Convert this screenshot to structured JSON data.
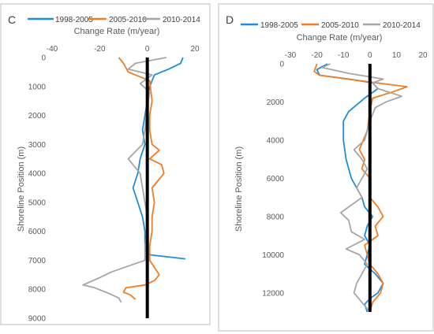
{
  "colors": {
    "s1998": "#1f8dd6",
    "s2005": "#f07d24",
    "s2010": "#a6a6a6",
    "zero_line": "#000000"
  },
  "chart_data": [
    {
      "type": "line",
      "panel": "C",
      "xlabel": "Change Rate (m/year)",
      "ylabel": "Shoreline Position (m)",
      "xlim": [
        -40,
        20
      ],
      "ylim": [
        0,
        9000
      ],
      "y_inverted": true,
      "x_ticks": [
        -40,
        -20,
        0,
        20
      ],
      "y_ticks": [
        0,
        1000,
        2000,
        3000,
        4000,
        5000,
        6000,
        7000,
        8000,
        9000
      ],
      "legend_position": "top",
      "series": [
        {
          "name": "1998-2005",
          "color": "#1f8dd6",
          "points": [
            [
              15,
              0
            ],
            [
              14,
              200
            ],
            [
              9,
              400
            ],
            [
              3,
              600
            ],
            [
              1,
              1000
            ],
            [
              0,
              1500
            ],
            [
              -1,
              2000
            ],
            [
              -2,
              2500
            ],
            [
              -1,
              3000
            ],
            [
              -3,
              3500
            ],
            [
              -4,
              4000
            ],
            [
              -6,
              4500
            ],
            [
              -4,
              5000
            ],
            [
              -2,
              5500
            ],
            [
              -1,
              6000
            ],
            [
              -1,
              6500
            ],
            [
              0,
              6800
            ],
            [
              16,
              6950
            ]
          ]
        },
        {
          "name": "2005-2010",
          "color": "#f07d24",
          "points": [
            [
              -12,
              0
            ],
            [
              -10,
              200
            ],
            [
              -8,
              500
            ],
            [
              1,
              800
            ],
            [
              2,
              1500
            ],
            [
              1,
              2000
            ],
            [
              1,
              2500
            ],
            [
              2,
              3000
            ],
            [
              5,
              3200
            ],
            [
              1,
              3500
            ],
            [
              6,
              3700
            ],
            [
              7,
              4000
            ],
            [
              5,
              4200
            ],
            [
              2,
              4500
            ],
            [
              3,
              5000
            ],
            [
              2,
              5500
            ],
            [
              2,
              6000
            ],
            [
              1,
              6500
            ],
            [
              1,
              7000
            ],
            [
              5,
              7500
            ],
            [
              3,
              7700
            ],
            [
              -1,
              7850
            ],
            [
              -9,
              7950
            ],
            [
              -10,
              8100
            ],
            [
              -7,
              8200
            ],
            [
              -5,
              8350
            ]
          ]
        },
        {
          "name": "2010-2014",
          "color": "#a6a6a6",
          "points": [
            [
              8,
              0
            ],
            [
              -5,
              200
            ],
            [
              -8,
              400
            ],
            [
              2,
              600
            ],
            [
              -3,
              900
            ],
            [
              1,
              1200
            ],
            [
              0,
              1700
            ],
            [
              -1,
              2500
            ],
            [
              -2,
              3000
            ],
            [
              -8,
              3500
            ],
            [
              -5,
              3800
            ],
            [
              -3,
              4000
            ],
            [
              -2,
              4500
            ],
            [
              -1,
              5000
            ],
            [
              0,
              5500
            ],
            [
              0,
              6000
            ],
            [
              -1,
              6500
            ],
            [
              -1,
              7000
            ],
            [
              -8,
              7200
            ],
            [
              -15,
              7400
            ],
            [
              -20,
              7600
            ],
            [
              -27,
              7850
            ],
            [
              -22,
              7950
            ],
            [
              -16,
              8150
            ],
            [
              -12,
              8300
            ],
            [
              -11,
              8450
            ]
          ]
        }
      ]
    },
    {
      "type": "line",
      "panel": "D",
      "xlabel": "Change Rate (m/year)",
      "ylabel": "Shoreline Position (m)",
      "xlim": [
        -30,
        20
      ],
      "ylim": [
        0,
        13000
      ],
      "y_inverted": true,
      "x_ticks": [
        -30,
        -20,
        -10,
        0,
        10,
        20
      ],
      "y_ticks": [
        0,
        2000,
        4000,
        6000,
        8000,
        10000,
        12000
      ],
      "legend_position": "top",
      "series": [
        {
          "name": "1998-2005",
          "color": "#1f8dd6",
          "points": [
            [
              -16,
              0
            ],
            [
              -20,
              300
            ],
            [
              -19,
              600
            ],
            [
              -8,
              800
            ],
            [
              1,
              1000
            ],
            [
              3,
              1300
            ],
            [
              -2,
              1800
            ],
            [
              -8,
              2500
            ],
            [
              -10,
              3000
            ],
            [
              -10,
              4000
            ],
            [
              -9,
              5000
            ],
            [
              -7,
              6000
            ],
            [
              -5,
              6500
            ],
            [
              -3,
              7000
            ],
            [
              -2,
              7500
            ],
            [
              1,
              8000
            ],
            [
              -1,
              8500
            ],
            [
              -2,
              9000
            ],
            [
              0,
              9500
            ],
            [
              -1,
              10000
            ],
            [
              -2,
              10500
            ],
            [
              2,
              11000
            ],
            [
              5,
              11500
            ],
            [
              3,
              12000
            ],
            [
              0,
              12300
            ],
            [
              -2,
              12600
            ],
            [
              -1,
              13000
            ]
          ]
        },
        {
          "name": "2005-2010",
          "color": "#f07d24",
          "points": [
            [
              -20,
              0
            ],
            [
              -21,
              400
            ],
            [
              -19,
              600
            ],
            [
              -3,
              900
            ],
            [
              14,
              1200
            ],
            [
              8,
              1500
            ],
            [
              1,
              1800
            ],
            [
              0,
              2500
            ],
            [
              -1,
              3500
            ],
            [
              -4,
              4500
            ],
            [
              -2,
              5000
            ],
            [
              -3,
              5500
            ],
            [
              0,
              6000
            ],
            [
              0,
              7000
            ],
            [
              3,
              7500
            ],
            [
              5,
              8000
            ],
            [
              2,
              8500
            ],
            [
              3,
              9000
            ],
            [
              -2,
              9500
            ],
            [
              -1,
              10000
            ],
            [
              0,
              10500
            ],
            [
              3,
              11000
            ],
            [
              5,
              11500
            ],
            [
              4,
              12000
            ],
            [
              1,
              12500
            ],
            [
              0,
              13000
            ]
          ]
        },
        {
          "name": "2010-2014",
          "color": "#a6a6a6",
          "points": [
            [
              -15,
              0
            ],
            [
              -18,
              200
            ],
            [
              -8,
              500
            ],
            [
              5,
              800
            ],
            [
              1,
              1000
            ],
            [
              3,
              1300
            ],
            [
              12,
              1700
            ],
            [
              6,
              2000
            ],
            [
              2,
              2300
            ],
            [
              0,
              3000
            ],
            [
              -2,
              4000
            ],
            [
              -6,
              4500
            ],
            [
              -3,
              5000
            ],
            [
              -1,
              5500
            ],
            [
              -5,
              6500
            ],
            [
              -3,
              7000
            ],
            [
              -11,
              7800
            ],
            [
              -8,
              8200
            ],
            [
              -7,
              8800
            ],
            [
              -2,
              9200
            ],
            [
              -9,
              9700
            ],
            [
              -4,
              10000
            ],
            [
              -1,
              10500
            ],
            [
              -3,
              11000
            ],
            [
              -5,
              11500
            ],
            [
              -6,
              12000
            ],
            [
              -3,
              12500
            ],
            [
              0,
              13000
            ]
          ]
        }
      ]
    }
  ]
}
